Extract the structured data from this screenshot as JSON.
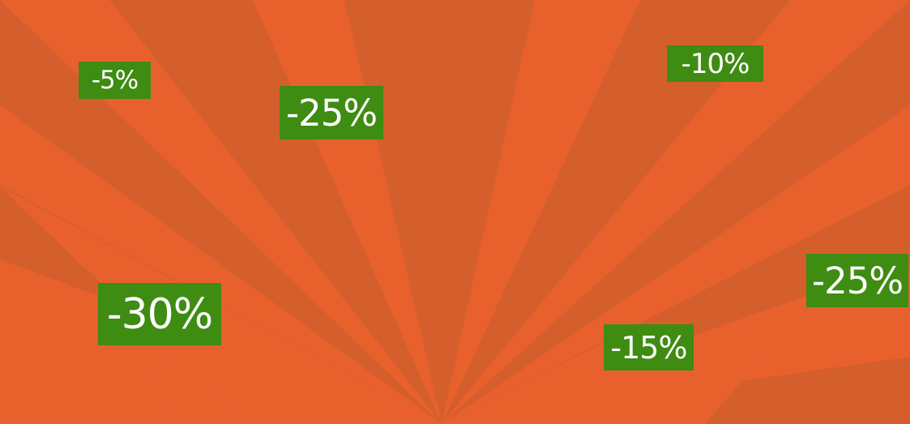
{
  "colors": {
    "background": "#d45f2c",
    "ray": "#e8612d",
    "badge": "#3e8c12",
    "badge_text": "#ffffff"
  },
  "badges": [
    {
      "label": "-5%"
    },
    {
      "label": "-25%"
    },
    {
      "label": "-10%"
    },
    {
      "label": "-30%"
    },
    {
      "label": "-15%"
    },
    {
      "label": "-25%"
    }
  ]
}
